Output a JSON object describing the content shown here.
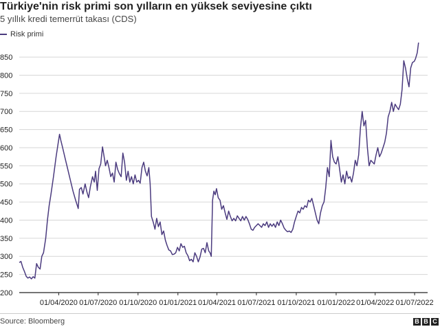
{
  "title": "Türkiye'nin risk primi son yılların en yüksek seviyesine çıktı",
  "subtitle": "5 yıllık kredi temerrüt takası (CDS)",
  "source": "Source: Bloomberg",
  "logo": {
    "letters": [
      "B",
      "B",
      "C"
    ]
  },
  "colors": {
    "series": "#4a3a7e",
    "grid": "#d6d6d6",
    "axis": "#222222"
  },
  "chart_data": {
    "type": "line",
    "title": "Türkiye'nin risk primi son yılların en yüksek seviyesine çıktı",
    "subtitle": "5 yıllık kredi temerrüt takası (CDS)",
    "xlabel": "",
    "ylabel": "",
    "ylim": [
      200,
      890
    ],
    "xlim": [
      "2020-01-01",
      "2022-07-31"
    ],
    "yticks": [
      200,
      250,
      300,
      350,
      400,
      450,
      500,
      550,
      600,
      650,
      700,
      750,
      800,
      850
    ],
    "xticks": [
      {
        "date": "2020-04-01",
        "label": "01/04/2020"
      },
      {
        "date": "2020-07-01",
        "label": "01/07/2020"
      },
      {
        "date": "2020-10-01",
        "label": "01/10/2020"
      },
      {
        "date": "2021-01-01",
        "label": "01/01/2021"
      },
      {
        "date": "2021-04-01",
        "label": "01/04/2021"
      },
      {
        "date": "2021-07-01",
        "label": "01/07/2021"
      },
      {
        "date": "2021-10-01",
        "label": "01/10/2021"
      },
      {
        "date": "2022-01-01",
        "label": "01/01/2022"
      },
      {
        "date": "2022-04-01",
        "label": "01/04/2022"
      },
      {
        "date": "2022-07-01",
        "label": "01/07/2022"
      }
    ],
    "grid": true,
    "legend": "top-left",
    "series": [
      {
        "name": "Risk primi",
        "points": [
          [
            "2020-01-01",
            283
          ],
          [
            "2020-01-05",
            286
          ],
          [
            "2020-01-09",
            270
          ],
          [
            "2020-01-13",
            258
          ],
          [
            "2020-01-17",
            245
          ],
          [
            "2020-01-21",
            240
          ],
          [
            "2020-01-25",
            243
          ],
          [
            "2020-01-29",
            238
          ],
          [
            "2020-02-02",
            244
          ],
          [
            "2020-02-06",
            240
          ],
          [
            "2020-02-10",
            280
          ],
          [
            "2020-02-14",
            270
          ],
          [
            "2020-02-18",
            265
          ],
          [
            "2020-02-22",
            300
          ],
          [
            "2020-02-26",
            310
          ],
          [
            "2020-03-02",
            350
          ],
          [
            "2020-03-06",
            400
          ],
          [
            "2020-03-10",
            440
          ],
          [
            "2020-03-14",
            470
          ],
          [
            "2020-03-20",
            520
          ],
          [
            "2020-03-26",
            575
          ],
          [
            "2020-03-31",
            615
          ],
          [
            "2020-04-03",
            637
          ],
          [
            "2020-04-06",
            620
          ],
          [
            "2020-04-10",
            600
          ],
          [
            "2020-04-16",
            570
          ],
          [
            "2020-04-22",
            540
          ],
          [
            "2020-04-28",
            510
          ],
          [
            "2020-05-04",
            480
          ],
          [
            "2020-05-10",
            455
          ],
          [
            "2020-05-14",
            440
          ],
          [
            "2020-05-16",
            432
          ],
          [
            "2020-05-19",
            485
          ],
          [
            "2020-05-23",
            490
          ],
          [
            "2020-05-27",
            472
          ],
          [
            "2020-06-01",
            500
          ],
          [
            "2020-06-05",
            478
          ],
          [
            "2020-06-09",
            462
          ],
          [
            "2020-06-13",
            492
          ],
          [
            "2020-06-18",
            520
          ],
          [
            "2020-06-22",
            505
          ],
          [
            "2020-06-25",
            535
          ],
          [
            "2020-06-29",
            482
          ],
          [
            "2020-07-03",
            542
          ],
          [
            "2020-07-07",
            555
          ],
          [
            "2020-07-11",
            602
          ],
          [
            "2020-07-14",
            580
          ],
          [
            "2020-07-18",
            550
          ],
          [
            "2020-07-22",
            565
          ],
          [
            "2020-07-26",
            545
          ],
          [
            "2020-07-30",
            520
          ],
          [
            "2020-08-03",
            530
          ],
          [
            "2020-08-07",
            505
          ],
          [
            "2020-08-11",
            560
          ],
          [
            "2020-08-15",
            540
          ],
          [
            "2020-08-19",
            528
          ],
          [
            "2020-08-23",
            520
          ],
          [
            "2020-08-27",
            585
          ],
          [
            "2020-08-31",
            560
          ],
          [
            "2020-09-04",
            510
          ],
          [
            "2020-09-08",
            535
          ],
          [
            "2020-09-12",
            505
          ],
          [
            "2020-09-16",
            520
          ],
          [
            "2020-09-20",
            500
          ],
          [
            "2020-09-24",
            525
          ],
          [
            "2020-09-28",
            505
          ],
          [
            "2020-10-02",
            510
          ],
          [
            "2020-10-06",
            502
          ],
          [
            "2020-10-10",
            545
          ],
          [
            "2020-10-14",
            560
          ],
          [
            "2020-10-18",
            535
          ],
          [
            "2020-10-22",
            522
          ],
          [
            "2020-10-26",
            545
          ],
          [
            "2020-10-29",
            500
          ],
          [
            "2020-11-01",
            410
          ],
          [
            "2020-11-05",
            395
          ],
          [
            "2020-11-09",
            375
          ],
          [
            "2020-11-13",
            405
          ],
          [
            "2020-11-17",
            382
          ],
          [
            "2020-11-21",
            395
          ],
          [
            "2020-11-25",
            360
          ],
          [
            "2020-11-29",
            370
          ],
          [
            "2020-12-03",
            345
          ],
          [
            "2020-12-07",
            330
          ],
          [
            "2020-12-11",
            318
          ],
          [
            "2020-12-15",
            315
          ],
          [
            "2020-12-19",
            305
          ],
          [
            "2020-12-23",
            306
          ],
          [
            "2020-12-27",
            310
          ],
          [
            "2020-12-31",
            325
          ],
          [
            "2021-01-04",
            315
          ],
          [
            "2021-01-08",
            335
          ],
          [
            "2021-01-12",
            325
          ],
          [
            "2021-01-16",
            328
          ],
          [
            "2021-01-20",
            310
          ],
          [
            "2021-01-24",
            302
          ],
          [
            "2021-01-28",
            288
          ],
          [
            "2021-02-01",
            292
          ],
          [
            "2021-02-05",
            285
          ],
          [
            "2021-02-09",
            310
          ],
          [
            "2021-02-13",
            300
          ],
          [
            "2021-02-17",
            285
          ],
          [
            "2021-02-21",
            298
          ],
          [
            "2021-02-25",
            320
          ],
          [
            "2021-03-01",
            322
          ],
          [
            "2021-03-05",
            310
          ],
          [
            "2021-03-09",
            338
          ],
          [
            "2021-03-13",
            315
          ],
          [
            "2021-03-16",
            310
          ],
          [
            "2021-03-19",
            300
          ],
          [
            "2021-03-22",
            455
          ],
          [
            "2021-03-25",
            480
          ],
          [
            "2021-03-28",
            470
          ],
          [
            "2021-03-31",
            487
          ],
          [
            "2021-04-04",
            462
          ],
          [
            "2021-04-08",
            455
          ],
          [
            "2021-04-12",
            430
          ],
          [
            "2021-04-16",
            440
          ],
          [
            "2021-04-20",
            420
          ],
          [
            "2021-04-24",
            402
          ],
          [
            "2021-04-28",
            425
          ],
          [
            "2021-05-02",
            410
          ],
          [
            "2021-05-06",
            398
          ],
          [
            "2021-05-10",
            405
          ],
          [
            "2021-05-14",
            398
          ],
          [
            "2021-05-18",
            412
          ],
          [
            "2021-05-22",
            405
          ],
          [
            "2021-05-26",
            398
          ],
          [
            "2021-05-30",
            410
          ],
          [
            "2021-06-03",
            400
          ],
          [
            "2021-06-07",
            410
          ],
          [
            "2021-06-11",
            402
          ],
          [
            "2021-06-15",
            390
          ],
          [
            "2021-06-19",
            375
          ],
          [
            "2021-06-23",
            372
          ],
          [
            "2021-06-27",
            380
          ],
          [
            "2021-07-01",
            385
          ],
          [
            "2021-07-05",
            390
          ],
          [
            "2021-07-09",
            385
          ],
          [
            "2021-07-13",
            380
          ],
          [
            "2021-07-17",
            390
          ],
          [
            "2021-07-21",
            385
          ],
          [
            "2021-07-25",
            395
          ],
          [
            "2021-07-29",
            380
          ],
          [
            "2021-08-02",
            390
          ],
          [
            "2021-08-06",
            383
          ],
          [
            "2021-08-10",
            390
          ],
          [
            "2021-08-14",
            380
          ],
          [
            "2021-08-18",
            395
          ],
          [
            "2021-08-22",
            385
          ],
          [
            "2021-08-26",
            400
          ],
          [
            "2021-08-30",
            390
          ],
          [
            "2021-09-03",
            378
          ],
          [
            "2021-09-07",
            372
          ],
          [
            "2021-09-11",
            368
          ],
          [
            "2021-09-15",
            370
          ],
          [
            "2021-09-19",
            366
          ],
          [
            "2021-09-23",
            375
          ],
          [
            "2021-09-27",
            395
          ],
          [
            "2021-10-01",
            410
          ],
          [
            "2021-10-05",
            425
          ],
          [
            "2021-10-09",
            420
          ],
          [
            "2021-10-13",
            435
          ],
          [
            "2021-10-17",
            430
          ],
          [
            "2021-10-21",
            440
          ],
          [
            "2021-10-25",
            435
          ],
          [
            "2021-10-29",
            455
          ],
          [
            "2021-11-02",
            450
          ],
          [
            "2021-11-06",
            460
          ],
          [
            "2021-11-10",
            440
          ],
          [
            "2021-11-14",
            420
          ],
          [
            "2021-11-18",
            400
          ],
          [
            "2021-11-22",
            390
          ],
          [
            "2021-11-26",
            420
          ],
          [
            "2021-11-30",
            440
          ],
          [
            "2021-12-04",
            450
          ],
          [
            "2021-12-08",
            490
          ],
          [
            "2021-12-12",
            545
          ],
          [
            "2021-12-16",
            520
          ],
          [
            "2021-12-20",
            620
          ],
          [
            "2021-12-24",
            575
          ],
          [
            "2021-12-28",
            560
          ],
          [
            "2022-01-01",
            555
          ],
          [
            "2022-01-05",
            575
          ],
          [
            "2022-01-09",
            540
          ],
          [
            "2022-01-13",
            505
          ],
          [
            "2022-01-17",
            525
          ],
          [
            "2022-01-21",
            500
          ],
          [
            "2022-01-25",
            535
          ],
          [
            "2022-01-29",
            515
          ],
          [
            "2022-02-02",
            520
          ],
          [
            "2022-02-06",
            505
          ],
          [
            "2022-02-10",
            530
          ],
          [
            "2022-02-14",
            565
          ],
          [
            "2022-02-18",
            550
          ],
          [
            "2022-02-22",
            580
          ],
          [
            "2022-02-26",
            655
          ],
          [
            "2022-03-02",
            700
          ],
          [
            "2022-03-06",
            660
          ],
          [
            "2022-03-10",
            675
          ],
          [
            "2022-03-14",
            600
          ],
          [
            "2022-03-18",
            550
          ],
          [
            "2022-03-22",
            565
          ],
          [
            "2022-03-26",
            560
          ],
          [
            "2022-03-30",
            555
          ],
          [
            "2022-04-03",
            580
          ],
          [
            "2022-04-07",
            600
          ],
          [
            "2022-04-11",
            575
          ],
          [
            "2022-04-15",
            585
          ],
          [
            "2022-04-19",
            600
          ],
          [
            "2022-04-23",
            615
          ],
          [
            "2022-04-27",
            640
          ],
          [
            "2022-05-01",
            685
          ],
          [
            "2022-05-05",
            700
          ],
          [
            "2022-05-09",
            725
          ],
          [
            "2022-05-13",
            700
          ],
          [
            "2022-05-17",
            720
          ],
          [
            "2022-05-21",
            712
          ],
          [
            "2022-05-25",
            705
          ],
          [
            "2022-05-29",
            720
          ],
          [
            "2022-06-02",
            760
          ],
          [
            "2022-06-06",
            840
          ],
          [
            "2022-06-10",
            820
          ],
          [
            "2022-06-14",
            790
          ],
          [
            "2022-06-18",
            768
          ],
          [
            "2022-06-22",
            820
          ],
          [
            "2022-06-26",
            835
          ],
          [
            "2022-06-30",
            838
          ],
          [
            "2022-07-03",
            845
          ],
          [
            "2022-07-07",
            862
          ],
          [
            "2022-07-10",
            890
          ]
        ]
      }
    ]
  }
}
